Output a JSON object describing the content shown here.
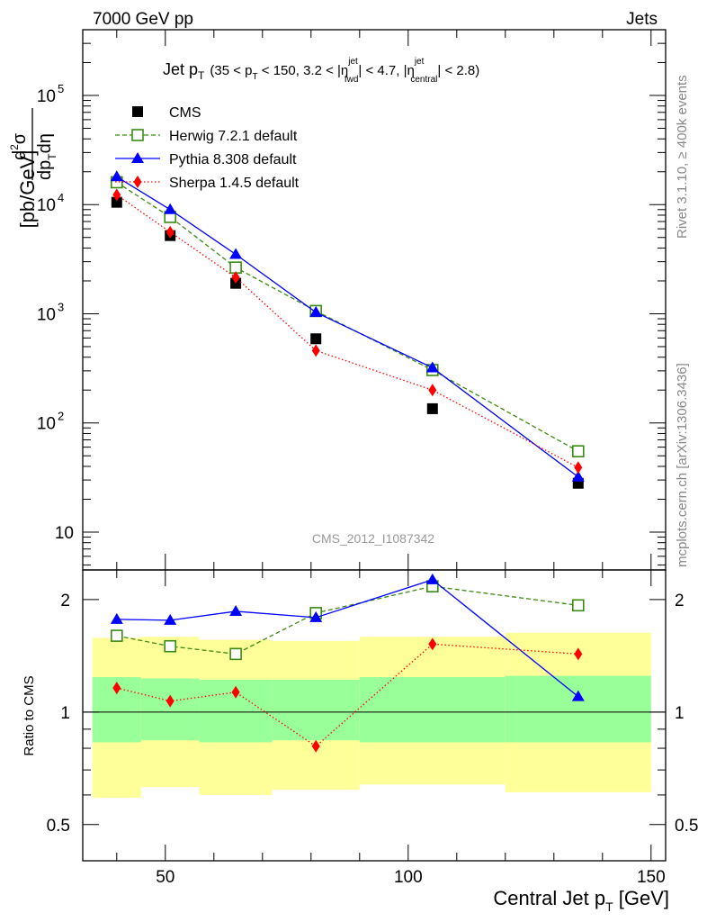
{
  "header": {
    "left": "7000 GeV pp",
    "right": "Jets"
  },
  "side_labels": {
    "rivet": "Rivet 3.1.10, ≥ 400k events",
    "mcplots": "mcplots.cern.ch [arXiv:1306.3436]"
  },
  "watermark": "CMS_2012_I1087342",
  "colors": {
    "cms": "#000000",
    "herwig": "#3a8a13",
    "pythia": "#0000ff",
    "sherpa": "#ff0000",
    "band_outer": "#ffff99",
    "band_inner": "#99ff99"
  },
  "chart_data": [
    {
      "type": "line",
      "title": "Jet p_T (35 < p_T < 150, 3.2 < |η_fwd^jet| < 4.7, |η_central^jet| < 2.8)",
      "title_parts": {
        "main": "Jet p",
        "sub_T": "T",
        "range_open": "(35 < p",
        "range_rest": " < 150, 3.2 < |η",
        "sup_jet": "jet",
        "sub_fwd": "fwd",
        "mid": "| < 4.7, |η",
        "sub_central": "central",
        "end": "| < 2.8)"
      },
      "ylabel": "d²σ/dp_T dη [pb/GeV]",
      "ylabel_unit": "[pb/GeV]",
      "yscale": "log",
      "ylim": [
        4.5,
        400000
      ],
      "yticks": [
        {
          "value": 10,
          "label": "10"
        },
        {
          "value": 100,
          "label": "10",
          "exp": "2"
        },
        {
          "value": 1000,
          "label": "10",
          "exp": "3"
        },
        {
          "value": 10000,
          "label": "10",
          "exp": "4"
        },
        {
          "value": 100000,
          "label": "10",
          "exp": "5"
        }
      ],
      "xlim": [
        33,
        153
      ],
      "legend": "top-left",
      "series": [
        {
          "name": "CMS",
          "style": "data",
          "x": [
            40,
            51,
            64.5,
            81,
            105,
            135
          ],
          "values": [
            10500,
            5200,
            1900,
            590,
            135,
            28
          ]
        },
        {
          "name": "Herwig 7.2.1 default",
          "style": "dashed-open-square",
          "x": [
            40,
            51,
            64.5,
            81,
            105,
            135
          ],
          "values": [
            16000,
            7700,
            2650,
            1060,
            305,
            55
          ]
        },
        {
          "name": "Pythia 8.308 default",
          "style": "solid-triangle",
          "x": [
            40,
            51,
            64.5,
            81,
            105,
            135
          ],
          "values": [
            18000,
            9000,
            3500,
            1030,
            320,
            32
          ]
        },
        {
          "name": "Sherpa 1.4.5 default",
          "style": "dotted-diamond",
          "x": [
            40,
            51,
            64.5,
            81,
            105,
            135
          ],
          "values": [
            12300,
            5600,
            2150,
            460,
            200,
            39
          ]
        }
      ]
    },
    {
      "type": "line",
      "ylabel": "Ratio to CMS",
      "xlabel": "Central Jet p_T [GeV]",
      "xlabel_text": "Central Jet p",
      "xlabel_unit": " [GeV]",
      "xticks": [
        {
          "value": 50,
          "label": "50"
        },
        {
          "value": 100,
          "label": "100"
        },
        {
          "value": 150,
          "label": "150"
        }
      ],
      "yticks": [
        {
          "value": 0.5,
          "label": "0.5"
        },
        {
          "value": 1,
          "label": "1"
        },
        {
          "value": 2,
          "label": "2"
        }
      ],
      "xlim": [
        33,
        153
      ],
      "ylim": [
        0.4,
        2.4
      ],
      "bands": [
        {
          "x": [
            35,
            45
          ],
          "inner": [
            0.83,
            1.24
          ],
          "outer": [
            0.59,
            1.58
          ]
        },
        {
          "x": [
            45,
            57
          ],
          "inner": [
            0.84,
            1.23
          ],
          "outer": [
            0.63,
            1.59
          ]
        },
        {
          "x": [
            57,
            72
          ],
          "inner": [
            0.83,
            1.22
          ],
          "outer": [
            0.6,
            1.56
          ]
        },
        {
          "x": [
            72,
            90
          ],
          "inner": [
            0.84,
            1.22
          ],
          "outer": [
            0.62,
            1.55
          ]
        },
        {
          "x": [
            90,
            120
          ],
          "inner": [
            0.83,
            1.24
          ],
          "outer": [
            0.64,
            1.59
          ]
        },
        {
          "x": [
            120,
            150
          ],
          "inner": [
            0.83,
            1.25
          ],
          "outer": [
            0.61,
            1.63
          ]
        }
      ],
      "series": [
        {
          "name": "Herwig 7.2.1 default",
          "x": [
            40,
            51,
            64.5,
            81,
            105,
            135
          ],
          "values": [
            1.6,
            1.5,
            1.43,
            1.84,
            2.17,
            1.93
          ]
        },
        {
          "name": "Pythia 8.308 default",
          "x": [
            40,
            51,
            64.5,
            81,
            105,
            135
          ],
          "values": [
            1.77,
            1.76,
            1.86,
            1.79,
            2.26,
            1.1
          ]
        },
        {
          "name": "Sherpa 1.4.5 default",
          "x": [
            40,
            51,
            64.5,
            81,
            105,
            135
          ],
          "values": [
            1.16,
            1.07,
            1.13,
            0.81,
            1.52,
            1.43
          ]
        }
      ]
    }
  ]
}
